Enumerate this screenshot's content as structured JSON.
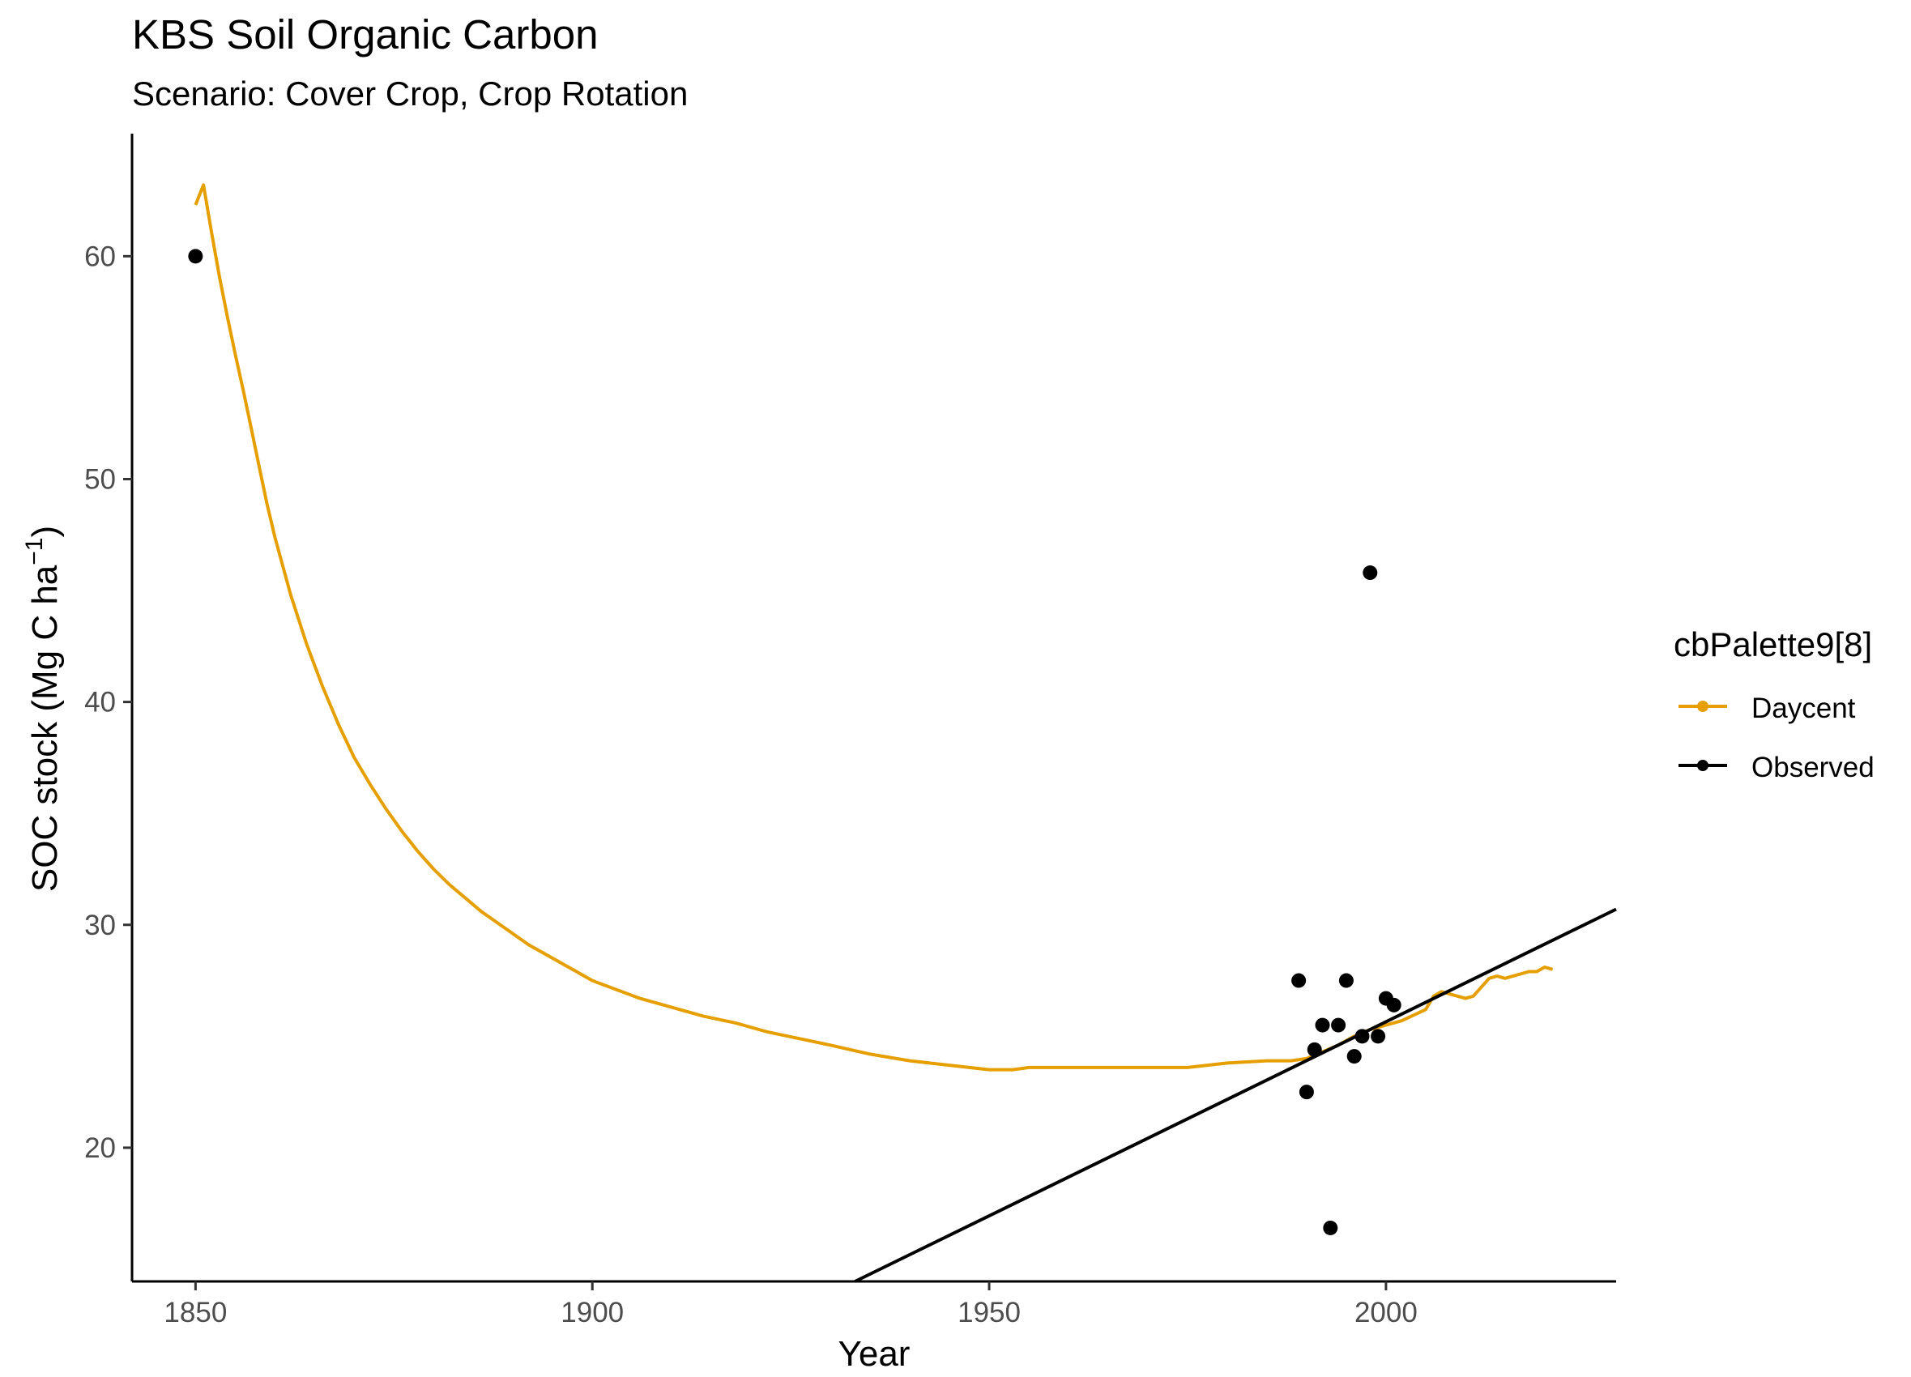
{
  "chart_data": {
    "type": "line",
    "title": "KBS Soil Organic Carbon",
    "subtitle": "Scenario: Cover Crop, Crop Rotation",
    "xlabel": "Year",
    "ylabel_main": "SOC stock (Mg C ha",
    "ylabel_sup": "−1",
    "ylabel_close": ")",
    "xlim": [
      1842,
      2029
    ],
    "ylim": [
      14,
      65.5
    ],
    "x_ticks": [
      1850,
      1900,
      1950,
      2000
    ],
    "x_tick_labels": [
      "1850",
      "1900",
      "1950",
      "2000"
    ],
    "y_ticks": [
      20,
      30,
      40,
      50,
      60
    ],
    "y_tick_labels": [
      "20",
      "30",
      "40",
      "50",
      "60"
    ],
    "grid": false,
    "legend": {
      "title": "cbPalette9[8]",
      "position": "right",
      "entries": [
        {
          "label": "Daycent",
          "color": "#E69F00"
        },
        {
          "label": "Observed",
          "color": "#000000"
        }
      ]
    },
    "series": [
      {
        "name": "Daycent",
        "kind": "line",
        "color": "#E69F00",
        "x": [
          1850,
          1851,
          1852,
          1853,
          1854,
          1855,
          1856,
          1857,
          1858,
          1859,
          1860,
          1862,
          1864,
          1866,
          1868,
          1870,
          1872,
          1874,
          1876,
          1878,
          1880,
          1882,
          1884,
          1886,
          1888,
          1890,
          1892,
          1895,
          1898,
          1900,
          1903,
          1906,
          1910,
          1914,
          1918,
          1922,
          1926,
          1930,
          1935,
          1940,
          1945,
          1950,
          1953,
          1955,
          1960,
          1965,
          1970,
          1975,
          1980,
          1985,
          1988,
          1990,
          1992,
          1994,
          1996,
          1998,
          2000,
          2002,
          2005,
          2006,
          2007,
          2008,
          2009,
          2010,
          2011,
          2012,
          2013,
          2014,
          2015,
          2016,
          2017,
          2018,
          2019,
          2020,
          2021
        ],
        "y": [
          62.3,
          63.2,
          61.1,
          59.1,
          57.3,
          55.6,
          54.0,
          52.3,
          50.6,
          48.9,
          47.4,
          44.8,
          42.6,
          40.7,
          39.0,
          37.5,
          36.3,
          35.2,
          34.2,
          33.3,
          32.5,
          31.8,
          31.2,
          30.6,
          30.1,
          29.6,
          29.1,
          28.5,
          27.9,
          27.5,
          27.1,
          26.7,
          26.3,
          25.9,
          25.6,
          25.2,
          24.9,
          24.6,
          24.2,
          23.9,
          23.7,
          23.5,
          23.5,
          23.6,
          23.6,
          23.6,
          23.6,
          23.6,
          23.8,
          23.9,
          23.9,
          24.0,
          24.3,
          24.6,
          25.0,
          25.3,
          25.5,
          25.7,
          26.2,
          26.8,
          27.0,
          26.9,
          26.8,
          26.7,
          26.8,
          27.2,
          27.6,
          27.7,
          27.6,
          27.7,
          27.8,
          27.9,
          27.9,
          28.1,
          28.0
        ]
      },
      {
        "name": "Observed",
        "kind": "points",
        "color": "#000000",
        "x": [
          1850,
          1989,
          1990,
          1991,
          1992,
          1993,
          1994,
          1995,
          1996,
          1997,
          1998,
          1999,
          2000,
          2001
        ],
        "y": [
          60.0,
          27.5,
          22.5,
          24.4,
          25.5,
          16.4,
          25.5,
          27.5,
          24.1,
          25.0,
          45.8,
          25.0,
          26.7,
          26.4
        ]
      }
    ],
    "trend_line": {
      "color": "#000000",
      "x": [
        1933.1,
        2029
      ],
      "y": [
        14.0,
        30.7
      ]
    }
  }
}
